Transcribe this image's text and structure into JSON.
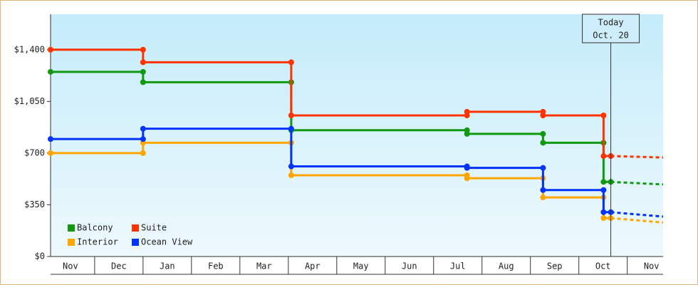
{
  "chart_data": {
    "type": "step-line",
    "x": [
      0.09,
      2.0,
      2.0,
      5.06,
      5.06,
      8.69,
      8.69,
      10.26,
      10.26,
      11.51,
      11.51,
      11.66,
      12.74
    ],
    "series": [
      {
        "name": "Balcony",
        "color": "#119911",
        "values": [
          1250,
          1250,
          1180,
          1180,
          855,
          855,
          830,
          830,
          770,
          770,
          505,
          505,
          488
        ]
      },
      {
        "name": "Suite",
        "color": "#ff3300",
        "values": [
          1400,
          1400,
          1315,
          1315,
          955,
          955,
          980,
          980,
          955,
          955,
          680,
          680,
          670
        ]
      },
      {
        "name": "Interior",
        "color": "#ffa500",
        "values": [
          700,
          700,
          770,
          770,
          550,
          550,
          530,
          530,
          400,
          400,
          260,
          260,
          230
        ]
      },
      {
        "name": "Ocean View",
        "color": "#0033ff",
        "values": [
          795,
          795,
          865,
          865,
          610,
          610,
          600,
          600,
          450,
          450,
          300,
          300,
          270
        ]
      }
    ],
    "xlim": [
      0.09,
      12.74
    ],
    "xticks": [
      {
        "value": 0.5,
        "label": "Nov"
      },
      {
        "value": 1.5,
        "label": "Dec"
      },
      {
        "value": 2.5,
        "label": "Jan"
      },
      {
        "value": 3.5,
        "label": "Feb"
      },
      {
        "value": 4.5,
        "label": "Mar"
      },
      {
        "value": 5.5,
        "label": "Apr"
      },
      {
        "value": 6.5,
        "label": "May"
      },
      {
        "value": 7.5,
        "label": "Jun"
      },
      {
        "value": 8.5,
        "label": "Jul"
      },
      {
        "value": 9.5,
        "label": "Aug"
      },
      {
        "value": 10.5,
        "label": "Sep"
      },
      {
        "value": 11.5,
        "label": "Oct"
      },
      {
        "value": 12.5,
        "label": "Nov"
      }
    ],
    "ylim": [
      0,
      1640
    ],
    "yticks": [
      {
        "value": 0,
        "label": "$0"
      },
      {
        "value": 350,
        "label": "$350"
      },
      {
        "value": 700,
        "label": "$700"
      },
      {
        "value": 1050,
        "label": "$1,050"
      },
      {
        "value": 1400,
        "label": "$1,400"
      }
    ],
    "today": {
      "x": 11.66,
      "label": [
        "Today",
        "Oct. 20"
      ]
    },
    "legend": "lower left"
  }
}
